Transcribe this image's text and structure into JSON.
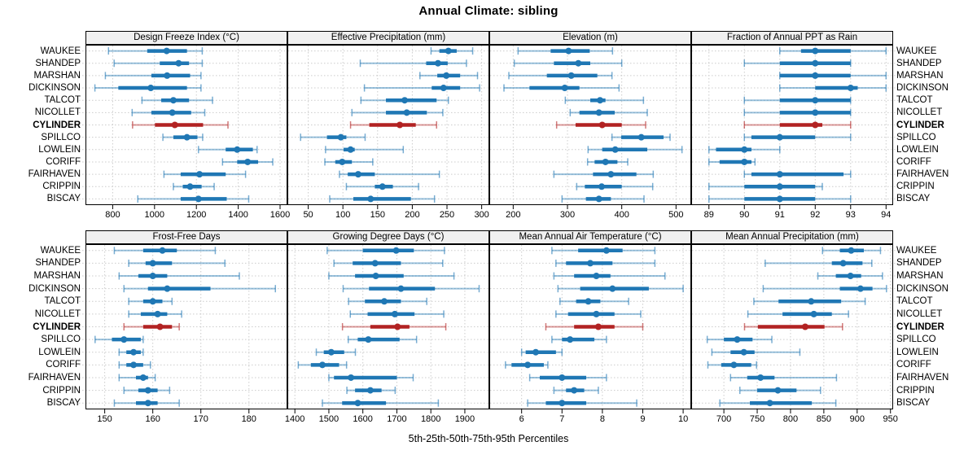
{
  "title": "Annual Climate: sibling",
  "caption": "5th-25th-50th-75th-95th Percentiles",
  "percentiles": [
    "5th",
    "25th",
    "50th",
    "75th",
    "95th"
  ],
  "sites": [
    "WAUKEE",
    "SHANDEP",
    "MARSHAN",
    "DICKINSON",
    "TALCOT",
    "NICOLLET",
    "CYLINDER",
    "SPILLCO",
    "LOWLEIN",
    "CORIFF",
    "FAIRHAVEN",
    "CRIPPIN",
    "BISCAY"
  ],
  "highlight_site": "CYLINDER",
  "colors": {
    "series": "#1f77b4",
    "highlight": "#b22222",
    "grid": "#cccccc",
    "header_bg": "#f0f0f0",
    "border": "#000000"
  },
  "chart_data": [
    {
      "type": "dotplot-percentiles",
      "title": "Design Freeze Index (°C)",
      "xlim": [
        670,
        1635
      ],
      "ticks": [
        800,
        1000,
        1200,
        1400,
        1600
      ],
      "values": {
        "WAUKEE": [
          780,
          965,
          1058,
          1155,
          1228
        ],
        "SHANDEP": [
          807,
          1025,
          1115,
          1165,
          1228
        ],
        "MARSHAN": [
          765,
          985,
          1060,
          1170,
          1222
        ],
        "DICKINSON": [
          715,
          827,
          982,
          1155,
          1222
        ],
        "TALCOT": [
          940,
          1032,
          1090,
          1165,
          1277
        ],
        "NICOLLET": [
          893,
          985,
          1085,
          1175,
          1240
        ],
        "CYLINDER": [
          895,
          1002,
          1097,
          1232,
          1351
        ],
        "SPILLCO": [
          1040,
          1090,
          1155,
          1205,
          1230
        ],
        "LOWLEIN": [
          1210,
          1340,
          1395,
          1470,
          1490
        ],
        "CORIFF": [
          1325,
          1395,
          1445,
          1495,
          1565
        ],
        "FAIRHAVEN": [
          1045,
          1125,
          1215,
          1340,
          1435
        ],
        "CRIPPIN": [
          1090,
          1135,
          1170,
          1225,
          1285
        ],
        "BISCAY": [
          920,
          1125,
          1210,
          1345,
          1450
        ]
      }
    },
    {
      "type": "dotplot-percentiles",
      "title": "Effective Precipitation (mm)",
      "xlim": [
        20,
        311
      ],
      "ticks": [
        50,
        100,
        150,
        200,
        250,
        300
      ],
      "values": {
        "WAUKEE": [
          227,
          239,
          252,
          264,
          287
        ],
        "SHANDEP": [
          125,
          220,
          237,
          251,
          278
        ],
        "MARSHAN": [
          211,
          236,
          249,
          269,
          294
        ],
        "DICKINSON": [
          131,
          228,
          245,
          269,
          297
        ],
        "TALCOT": [
          126,
          162,
          189,
          235,
          252
        ],
        "NICOLLET": [
          113,
          162,
          192,
          221,
          244
        ],
        "CYLINDER": [
          111,
          138,
          182,
          205,
          235
        ],
        "SPILLCO": [
          39,
          77,
          97,
          105,
          132
        ],
        "LOWLEIN": [
          75,
          101,
          111,
          117,
          187
        ],
        "CORIFF": [
          74,
          89,
          99,
          113,
          143
        ],
        "FAIRHAVEN": [
          95,
          107,
          122,
          146,
          239
        ],
        "CRIPPIN": [
          105,
          146,
          157,
          172,
          209
        ],
        "BISCAY": [
          81,
          115,
          140,
          198,
          232
        ]
      }
    },
    {
      "type": "dotplot-percentiles",
      "title": "Elevation (m)",
      "xlim": [
        156,
        528
      ],
      "ticks": [
        200,
        300,
        400,
        500
      ],
      "values": {
        "WAUKEE": [
          209,
          269,
          302,
          341,
          383
        ],
        "SHANDEP": [
          202,
          275,
          320,
          342,
          400
        ],
        "MARSHAN": [
          192,
          262,
          307,
          355,
          382
        ],
        "DICKINSON": [
          183,
          230,
          295,
          322,
          395
        ],
        "TALCOT": [
          296,
          342,
          360,
          370,
          440
        ],
        "NICOLLET": [
          305,
          322,
          358,
          387,
          447
        ],
        "CYLINDER": [
          280,
          315,
          364,
          400,
          444
        ],
        "SPILLCO": [
          382,
          399,
          436,
          477,
          489
        ],
        "LOWLEIN": [
          338,
          364,
          388,
          447,
          511
        ],
        "CORIFF": [
          337,
          350,
          370,
          392,
          411
        ],
        "FAIRHAVEN": [
          275,
          347,
          380,
          427,
          458
        ],
        "CRIPPIN": [
          317,
          332,
          363,
          400,
          457
        ],
        "BISCAY": [
          290,
          334,
          358,
          380,
          441
        ]
      }
    },
    {
      "type": "dotplot-percentiles",
      "title": "Fraction of Annual PPT as Rain",
      "xlim": [
        88.5,
        94.2
      ],
      "ticks": [
        89,
        90,
        91,
        92,
        93,
        94
      ],
      "values": {
        "WAUKEE": [
          91,
          91.6,
          92,
          93,
          94
        ],
        "SHANDEP": [
          90,
          91,
          92,
          93,
          93
        ],
        "MARSHAN": [
          91,
          91,
          92,
          93,
          94
        ],
        "DICKINSON": [
          91,
          92,
          93,
          93.2,
          94
        ],
        "TALCOT": [
          90,
          91,
          92,
          93,
          93
        ],
        "NICOLLET": [
          90,
          91,
          92,
          93,
          93
        ],
        "CYLINDER": [
          90,
          91,
          92,
          92.2,
          93
        ],
        "SPILLCO": [
          90,
          90.2,
          91,
          92,
          93
        ],
        "LOWLEIN": [
          89,
          89.2,
          90,
          90.2,
          91
        ],
        "CORIFF": [
          89,
          89.3,
          90,
          90.2,
          90.3
        ],
        "FAIRHAVEN": [
          90,
          90.2,
          91,
          92.8,
          93
        ],
        "CRIPPIN": [
          89,
          90,
          91,
          92,
          92.2
        ],
        "BISCAY": [
          89,
          90,
          91,
          92,
          93
        ]
      }
    },
    {
      "type": "dotplot-percentiles",
      "title": "Frost-Free Days",
      "xlim": [
        146,
        188
      ],
      "ticks": [
        150,
        160,
        170,
        180
      ],
      "values": {
        "WAUKEE": [
          152,
          158,
          162,
          165,
          173
        ],
        "SHANDEP": [
          155,
          158.5,
          160,
          164,
          175
        ],
        "MARSHAN": [
          153,
          157,
          160,
          163,
          178
        ],
        "DICKINSON": [
          154,
          159,
          163,
          172,
          185.5
        ],
        "TALCOT": [
          155,
          158,
          160,
          162,
          164
        ],
        "NICOLLET": [
          155,
          157.5,
          161,
          163,
          166
        ],
        "CYLINDER": [
          154,
          158,
          161.5,
          164,
          165.5
        ],
        "SPILLCO": [
          148,
          151.5,
          154,
          157.5,
          158
        ],
        "LOWLEIN": [
          153,
          154.5,
          156,
          157.5,
          158
        ],
        "CORIFF": [
          153,
          154.5,
          156,
          158,
          159.5
        ],
        "FAIRHAVEN": [
          153,
          156.5,
          158,
          159,
          160.5
        ],
        "CRIPPIN": [
          154,
          157,
          159,
          161,
          163.5
        ],
        "BISCAY": [
          152,
          156.5,
          159,
          161,
          165.5
        ]
      }
    },
    {
      "type": "dotplot-percentiles",
      "title": "Growing Degree Days (°C)",
      "xlim": [
        1378,
        1972
      ],
      "ticks": [
        1400,
        1500,
        1600,
        1700,
        1800,
        1900
      ],
      "values": {
        "WAUKEE": [
          1495,
          1600,
          1698,
          1750,
          1840
        ],
        "SHANDEP": [
          1515,
          1570,
          1636,
          1712,
          1835
        ],
        "MARSHAN": [
          1500,
          1577,
          1638,
          1720,
          1868
        ],
        "DICKINSON": [
          1542,
          1618,
          1712,
          1812,
          1942
        ],
        "TALCOT": [
          1558,
          1606,
          1663,
          1712,
          1788
        ],
        "NICOLLET": [
          1563,
          1614,
          1694,
          1752,
          1838
        ],
        "CYLINDER": [
          1540,
          1622,
          1702,
          1737,
          1844
        ],
        "SPILLCO": [
          1557,
          1585,
          1616,
          1708,
          1758
        ],
        "LOWLEIN": [
          1463,
          1485,
          1507,
          1545,
          1578
        ],
        "CORIFF": [
          1410,
          1447,
          1481,
          1530,
          1552
        ],
        "FAIRHAVEN": [
          1500,
          1515,
          1565,
          1700,
          1748
        ],
        "CRIPPIN": [
          1553,
          1577,
          1622,
          1655,
          1695
        ],
        "BISCAY": [
          1481,
          1539,
          1585,
          1668,
          1822
        ]
      }
    },
    {
      "type": "dotplot-percentiles",
      "title": "Mean Annual Air Temperature (°C)",
      "xlim": [
        5.2,
        10.2
      ],
      "ticks": [
        6,
        7,
        8,
        9,
        10
      ],
      "values": {
        "WAUKEE": [
          6.75,
          7.4,
          8.1,
          8.5,
          9.3
        ],
        "SHANDEP": [
          6.85,
          7.1,
          7.7,
          8.25,
          9.3
        ],
        "MARSHAN": [
          6.8,
          7.3,
          7.85,
          8.2,
          9.55
        ],
        "DICKINSON": [
          6.9,
          7.45,
          8.25,
          9.15,
          10.0
        ],
        "TALCOT": [
          6.95,
          7.35,
          7.65,
          7.95,
          8.65
        ],
        "NICOLLET": [
          6.85,
          7.15,
          7.85,
          8.3,
          8.95
        ],
        "CYLINDER": [
          6.6,
          7.3,
          7.9,
          8.3,
          9.0
        ],
        "SPILLCO": [
          6.75,
          7.0,
          7.2,
          7.8,
          8.1
        ],
        "LOWLEIN": [
          6.0,
          6.1,
          6.35,
          6.85,
          7.0
        ],
        "CORIFF": [
          5.6,
          5.75,
          6.15,
          6.55,
          6.65
        ],
        "FAIRHAVEN": [
          6.2,
          6.45,
          7.0,
          7.6,
          8.1
        ],
        "CRIPPIN": [
          6.8,
          7.1,
          7.3,
          7.55,
          7.9
        ],
        "BISCAY": [
          6.15,
          6.6,
          7.0,
          7.6,
          8.85
        ]
      }
    },
    {
      "type": "dotplot-percentiles",
      "title": "Mean Annual Precipitation (mm)",
      "xlim": [
        651,
        954
      ],
      "ticks": [
        700,
        750,
        800,
        850,
        900,
        950
      ],
      "values": {
        "WAUKEE": [
          848,
          874,
          891,
          910,
          935
        ],
        "SHANDEP": [
          762,
          862,
          879,
          908,
          922
        ],
        "MARSHAN": [
          841,
          868,
          890,
          906,
          938
        ],
        "DICKINSON": [
          759,
          874,
          905,
          923,
          944
        ],
        "TALCOT": [
          745,
          782,
          831,
          876,
          912
        ],
        "NICOLLET": [
          736,
          788,
          835,
          862,
          887
        ],
        "CYLINDER": [
          731,
          751,
          822,
          851,
          878
        ],
        "SPILLCO": [
          675,
          700,
          720,
          743,
          772
        ],
        "LOWLEIN": [
          682,
          710,
          730,
          746,
          814
        ],
        "CORIFF": [
          676,
          696,
          715,
          741,
          749
        ],
        "FAIRHAVEN": [
          710,
          735,
          755,
          776,
          869
        ],
        "CRIPPIN": [
          724,
          750,
          781,
          809,
          845
        ],
        "BISCAY": [
          694,
          739,
          769,
          832,
          868
        ]
      }
    }
  ]
}
